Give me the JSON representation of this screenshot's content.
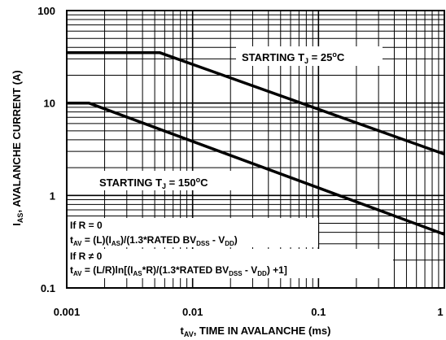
{
  "chart_data": {
    "type": "line",
    "xscale": "log",
    "yscale": "log",
    "xlim": [
      0.001,
      1
    ],
    "ylim": [
      0.1,
      100
    ],
    "grid": true,
    "xlabel": "tAV, TIME IN AVALANCHE (ms)",
    "xlabel_parts": {
      "main": "t",
      "sub": "AV",
      "rest": ", TIME IN AVALANCHE (ms)"
    },
    "ylabel": "IAS, AVALANCHE CURRENT (A)",
    "ylabel_parts": {
      "main": "I",
      "sub": "AS",
      "rest": ", AVALANCHE CURRENT (A)"
    },
    "x_ticks": [
      {
        "value": 0.001,
        "label": "0.001"
      },
      {
        "value": 0.01,
        "label": "0.01"
      },
      {
        "value": 0.1,
        "label": "0.1"
      },
      {
        "value": 1,
        "label": "1"
      }
    ],
    "y_ticks": [
      {
        "value": 100,
        "label": "100"
      },
      {
        "value": 10,
        "label": "10"
      },
      {
        "value": 1,
        "label": "1"
      },
      {
        "value": 0.1,
        "label": "0.1"
      }
    ],
    "series": [
      {
        "x": [
          0.001,
          0.0055,
          1
        ],
        "y": [
          35,
          35,
          2.8
        ]
      },
      {
        "x": [
          0.001,
          0.0015,
          1
        ],
        "y": [
          10,
          10,
          0.38
        ]
      }
    ],
    "annotations": {
      "t25": {
        "a": "STARTING T",
        "b": "J",
        "c": " = 25",
        "d": "o",
        "e": "C"
      },
      "t150": {
        "a": "STARTING T",
        "b": "J",
        "c": " = 150",
        "d": "o",
        "e": "C"
      },
      "eq1": {
        "text": "If R = 0"
      },
      "eq2": {
        "a": "t",
        "b": "AV",
        "c": " = (L)(I",
        "d": "AS",
        "e": ")/(1.3*RATED BV",
        "f": "DSS",
        "g": " - V",
        "h": "DD",
        "i": ")"
      },
      "eq3": {
        "text": "If R ≠ 0"
      },
      "eq4": {
        "a": "t",
        "b": "AV",
        "c": " = (L/R)ln[(I",
        "d": "AS",
        "e": "*R)/(1.3*RATED BV",
        "f": "DSS",
        "g": " - V",
        "h": "DD",
        "i": ") +1]"
      }
    }
  }
}
